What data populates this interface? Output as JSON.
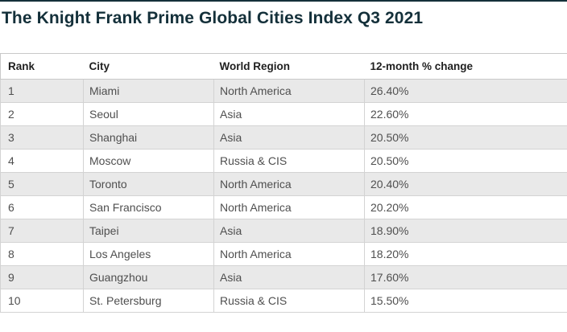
{
  "page": {
    "title": "The Knight Frank Prime Global Cities Index Q3 2021"
  },
  "colors": {
    "title-color": "#14303a",
    "rule-color": "#14303a",
    "stripe-color": "#e9e9e9",
    "border-color": "#c9c9c9",
    "header-text-color": "#1f1f1f",
    "body-text-color": "#4f4f4f"
  },
  "table": {
    "columns": [
      "Rank",
      "City",
      "World Region",
      "12-month % change"
    ],
    "rows": [
      {
        "rank": "1",
        "city": "Miami",
        "region": "North America",
        "change": "26.40%"
      },
      {
        "rank": "2",
        "city": "Seoul",
        "region": "Asia",
        "change": "22.60%"
      },
      {
        "rank": "3",
        "city": "Shanghai",
        "region": "Asia",
        "change": "20.50%"
      },
      {
        "rank": "4",
        "city": "Moscow",
        "region": "Russia & CIS",
        "change": "20.50%"
      },
      {
        "rank": "5",
        "city": "Toronto",
        "region": "North America",
        "change": "20.40%"
      },
      {
        "rank": "6",
        "city": "San Francisco",
        "region": "North America",
        "change": "20.20%"
      },
      {
        "rank": "7",
        "city": "Taipei",
        "region": "Asia",
        "change": "18.90%"
      },
      {
        "rank": "8",
        "city": "Los Angeles",
        "region": "North America",
        "change": "18.20%"
      },
      {
        "rank": "9",
        "city": "Guangzhou",
        "region": "Asia",
        "change": "17.60%"
      },
      {
        "rank": "10",
        "city": "St. Petersburg",
        "region": "Russia & CIS",
        "change": "15.50%"
      }
    ]
  },
  "chart_data": {
    "type": "table",
    "title": "The Knight Frank Prime Global Cities Index Q3 2021",
    "columns": [
      "Rank",
      "City",
      "World Region",
      "12-month % change"
    ],
    "rows": [
      [
        1,
        "Miami",
        "North America",
        26.4
      ],
      [
        2,
        "Seoul",
        "Asia",
        22.6
      ],
      [
        3,
        "Shanghai",
        "Asia",
        20.5
      ],
      [
        4,
        "Moscow",
        "Russia & CIS",
        20.5
      ],
      [
        5,
        "Toronto",
        "North America",
        20.4
      ],
      [
        6,
        "San Francisco",
        "North America",
        20.2
      ],
      [
        7,
        "Taipei",
        "Asia",
        18.9
      ],
      [
        8,
        "Los Angeles",
        "North America",
        18.2
      ],
      [
        9,
        "Guangzhou",
        "Asia",
        17.6
      ],
      [
        10,
        "St. Petersburg",
        "Russia & CIS",
        15.5
      ]
    ],
    "value_format": "percent",
    "notes": "Alternating gray/white row striping; header row bold with no internal column dividers"
  }
}
